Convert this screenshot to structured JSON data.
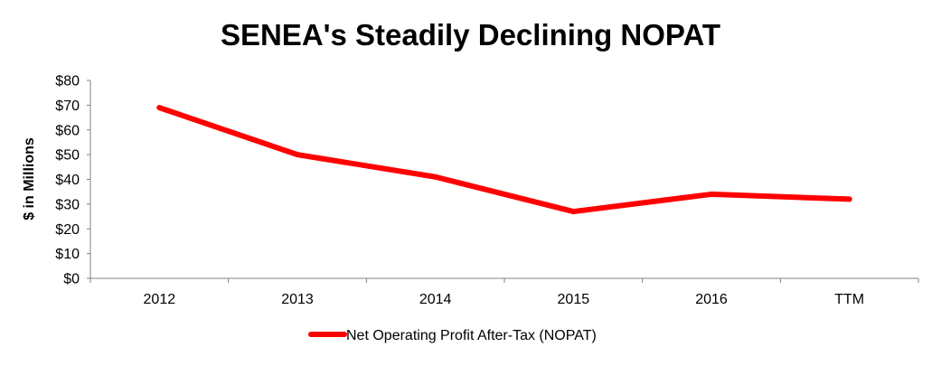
{
  "chart_data": {
    "type": "line",
    "title": "SENEA's Steadily Declining NOPAT",
    "xlabel": "",
    "ylabel": "$ in Millions",
    "categories": [
      "2012",
      "2013",
      "2014",
      "2015",
      "2016",
      "TTM"
    ],
    "series": [
      {
        "name": "Net Operating Profit After-Tax (NOPAT)",
        "values": [
          69,
          50,
          41,
          27,
          34,
          32
        ],
        "color": "#ff0000"
      }
    ],
    "ylim": [
      0,
      80
    ],
    "yticks": [
      0,
      10,
      20,
      30,
      40,
      50,
      60,
      70,
      80
    ],
    "ytick_labels": [
      "$0",
      "$10",
      "$20",
      "$30",
      "$40",
      "$50",
      "$60",
      "$70",
      "$80"
    ],
    "grid": false,
    "legend": "bottom-center"
  }
}
